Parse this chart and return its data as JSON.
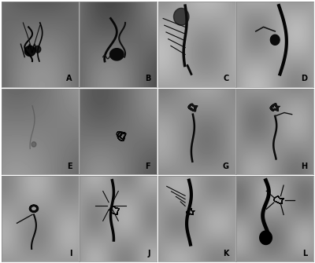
{
  "figure_width": 4.0,
  "figure_height": 3.35,
  "dpi": 100,
  "background_color": "#ffffff",
  "border_color": "#cccccc",
  "panels": [
    {
      "label": "A",
      "row": 0,
      "col": 0,
      "bg": "#a0a0a0",
      "style": "angio_dark"
    },
    {
      "label": "B",
      "row": 0,
      "col": 1,
      "bg": "#a8a8a8",
      "style": "angio_gray"
    },
    {
      "label": "C",
      "row": 0,
      "col": 2,
      "bg": "#d8d8d8",
      "style": "angio_light"
    },
    {
      "label": "D",
      "row": 0,
      "col": 3,
      "bg": "#d0d0d0",
      "style": "angio_light2"
    },
    {
      "label": "E",
      "row": 1,
      "col": 0,
      "bg": "#a0a0a0",
      "style": "angio_empty"
    },
    {
      "label": "F",
      "row": 1,
      "col": 1,
      "bg": "#a8a8a8",
      "style": "angio_coil"
    },
    {
      "label": "G",
      "row": 1,
      "col": 2,
      "bg": "#d0d0d0",
      "style": "angio_post"
    },
    {
      "label": "H",
      "row": 1,
      "col": 3,
      "bg": "#d0d0d0",
      "style": "angio_post2"
    },
    {
      "label": "I",
      "row": 2,
      "col": 0,
      "bg": "#d8d8d8",
      "style": "angio_follow"
    },
    {
      "label": "J",
      "row": 2,
      "col": 1,
      "bg": "#d8d8d8",
      "style": "angio_follow2"
    },
    {
      "label": "K",
      "row": 2,
      "col": 2,
      "bg": "#d8d8d8",
      "style": "angio_follow3"
    },
    {
      "label": "L",
      "row": 2,
      "col": 3,
      "bg": "#d0d0d0",
      "style": "angio_follow4"
    }
  ],
  "label_color": "#000000",
  "label_fontsize": 7,
  "outer_border_color": "#888888",
  "outer_border_lw": 1.0
}
